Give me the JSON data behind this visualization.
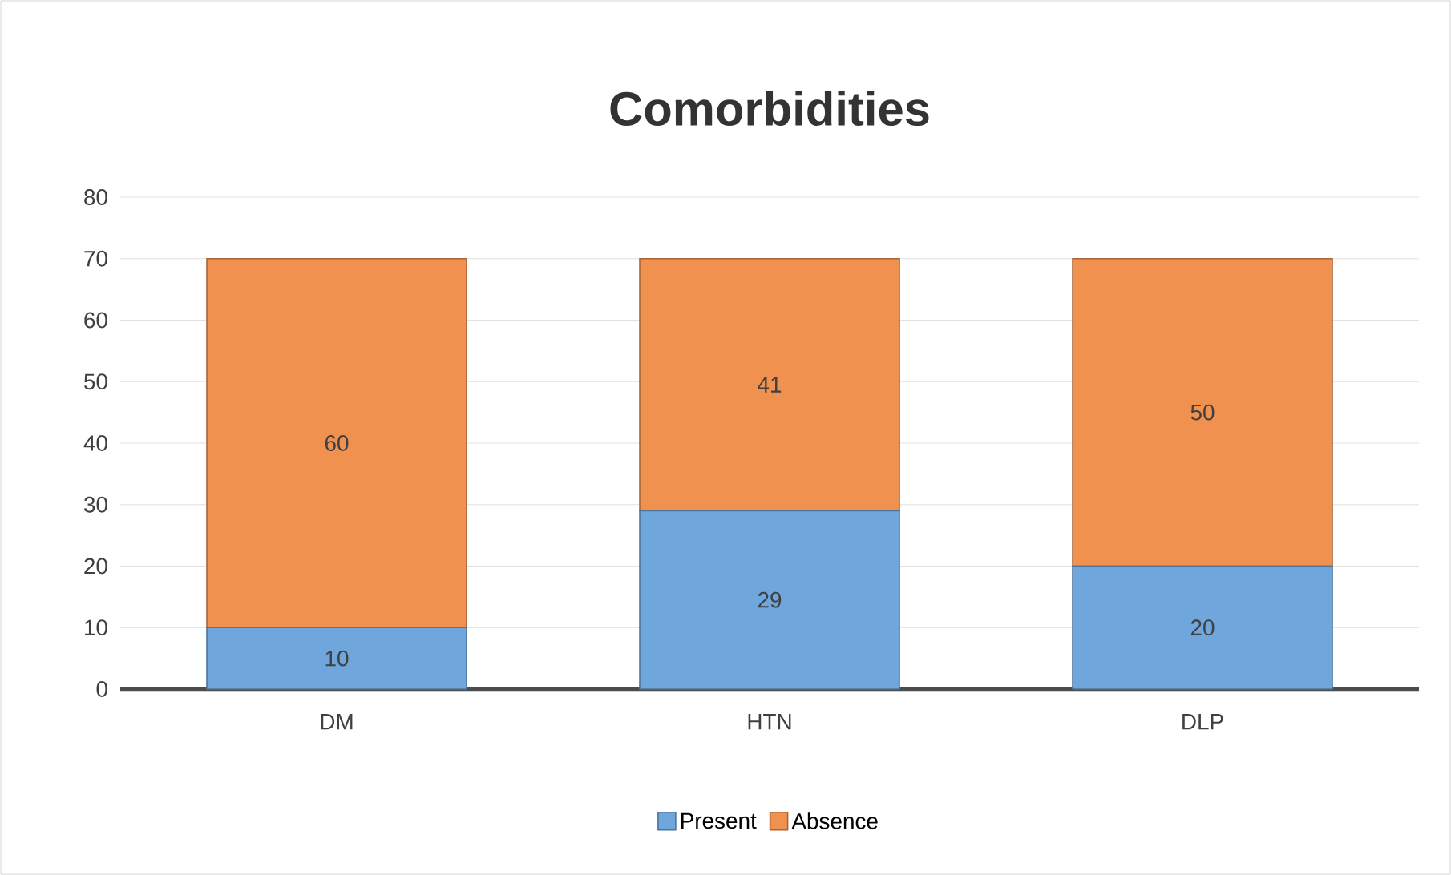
{
  "chart_data": {
    "type": "bar",
    "title": "Comorbidities",
    "stacked": true,
    "categories": [
      "DM",
      "HTN",
      "DLP"
    ],
    "series": [
      {
        "name": "Present",
        "color": "#6fa6dc",
        "values": [
          10,
          29,
          20
        ]
      },
      {
        "name": "Absence",
        "color": "#f0914f",
        "values": [
          60,
          41,
          50
        ]
      }
    ],
    "ylim": [
      0,
      80
    ],
    "yticks": [
      0,
      10,
      20,
      30,
      40,
      50,
      60,
      70,
      80
    ],
    "grid": "y",
    "legend": "bottom",
    "data_labels": true
  }
}
